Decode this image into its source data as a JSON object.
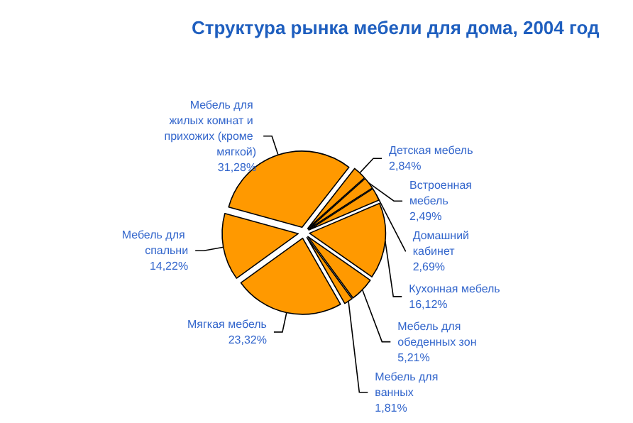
{
  "chart_data": {
    "type": "pie",
    "title": "Структура рынка мебели для дома, 2004 год",
    "categories": [
      "Детская мебель",
      "Встроенная мебель",
      "Домашний кабинет",
      "Кухонная мебель",
      "Мебель для обеденных зон",
      "Мебель для ванных",
      "Мягкая мебель",
      "Мебель для спальни",
      "Мебель для жилых комнат и прихожих (кроме мягкой)"
    ],
    "values": [
      2.84,
      2.49,
      2.69,
      16.12,
      5.21,
      1.81,
      23.32,
      14.22,
      31.28
    ],
    "value_labels": [
      "2,84%",
      "2,49%",
      "2,69%",
      "16,12%",
      "5,21%",
      "1,81%",
      "23,32%",
      "14,22%",
      "31,28%"
    ],
    "colors": [
      "#ff9900",
      "#ff9900",
      "#ff9900",
      "#ff9900",
      "#ff9900",
      "#ff9900",
      "#ff9900",
      "#ff9900",
      "#ff9900"
    ],
    "legend": false
  }
}
